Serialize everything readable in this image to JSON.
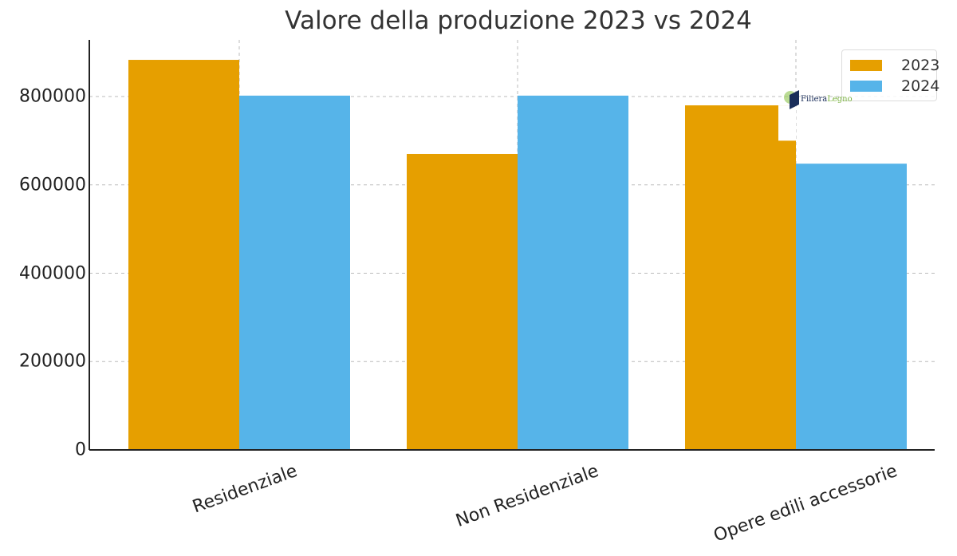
{
  "chart_data": {
    "type": "bar",
    "title": "Valore della produzione 2023 vs 2024",
    "xlabel": "",
    "ylabel": "",
    "categories": [
      "Residenziale",
      "Non Residenziale",
      "Opere edili accessorie"
    ],
    "series": [
      {
        "name": "2023",
        "color": "#E69F00",
        "values": [
          883000,
          670000,
          780000
        ]
      },
      {
        "name": "2024",
        "color": "#56B4E9",
        "values": [
          802000,
          802000,
          648000
        ]
      }
    ],
    "annotations": [
      {
        "note": "Opere edili accessorie 2023 bar shows a step at ~700000 on its right side"
      }
    ],
    "ylim": [
      0,
      930000
    ],
    "yticks": [
      0,
      200000,
      400000,
      600000,
      800000
    ],
    "grid": true,
    "legend_position": "upper right"
  },
  "title": "Valore della produzione 2023 vs 2024",
  "yticks": [
    "0",
    "200000",
    "400000",
    "600000",
    "800000"
  ],
  "xticks": [
    "Residenziale",
    "Non Residenziale",
    "Opere edili accessorie"
  ],
  "legend": {
    "items": [
      {
        "label": "2023",
        "color": "#E69F00"
      },
      {
        "label": "2024",
        "color": "#56B4E9"
      }
    ]
  },
  "watermark": {
    "text_dark": "Filiera",
    "text_green": "Legno"
  }
}
